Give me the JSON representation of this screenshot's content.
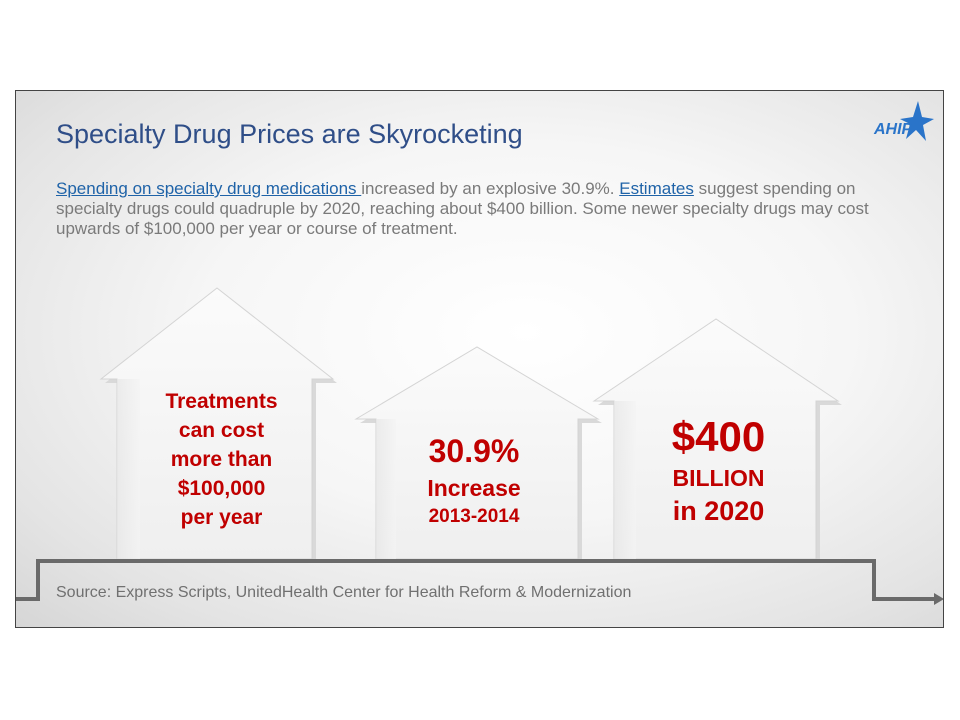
{
  "title": "Specialty Drug Prices are Skyrocketing",
  "logo_text": "AHIP",
  "intro": {
    "link1": "Spending on specialty drug medications ",
    "text1": "increased by an explosive 30.9%. ",
    "link2": "Estimates",
    "text2": " suggest spending on specialty drugs could quadruple by 2020, reaching about $400 billion. Some newer specialty drugs may cost upwards of $100,000 per year or course of treatment."
  },
  "arrows": [
    {
      "lines": [
        "Treatments",
        "can cost",
        "more than",
        "$100,000",
        "per year"
      ]
    },
    {
      "lines": [
        "30.9%",
        "Increase",
        "2013-2014"
      ]
    },
    {
      "lines": [
        "$400",
        "BILLION",
        "in 2020"
      ]
    }
  ],
  "source": "Source: Express Scripts, UnitedHealth Center for Health Reform & Modernization",
  "colors": {
    "title": "#2f4e88",
    "link": "#1f63a8",
    "highlight": "#c00000",
    "body_text": "#7a7a7a"
  }
}
